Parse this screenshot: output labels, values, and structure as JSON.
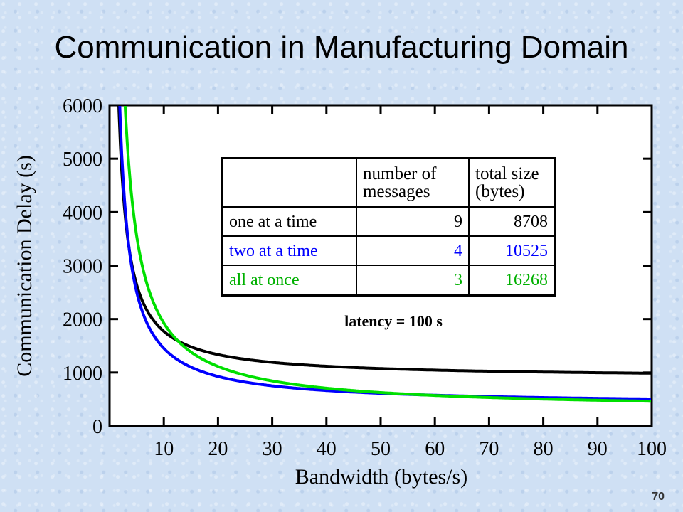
{
  "slide": {
    "title": "Communication in Manufacturing Domain",
    "page_number": "70"
  },
  "colors": {
    "one_at_a_time": "#000000",
    "two_at_a_time": "#0000ff",
    "all_at_once": "#00e000"
  },
  "chart_data": {
    "type": "line",
    "xlabel": "Bandwidth (bytes/s)",
    "ylabel": "Communication Delay (s)",
    "xlim": [
      0,
      100
    ],
    "ylim": [
      0,
      6000
    ],
    "x_ticks": [
      "10",
      "20",
      "30",
      "40",
      "50",
      "60",
      "70",
      "80",
      "90",
      "100"
    ],
    "y_ticks": [
      "0",
      "1000",
      "2000",
      "3000",
      "4000",
      "5000",
      "6000"
    ],
    "annotation": "latency = 100 s",
    "latency": 100,
    "series": [
      {
        "name": "one at a time",
        "messages": 9,
        "total_bytes": 8708
      },
      {
        "name": "two at a time",
        "messages": 4,
        "total_bytes": 10525
      },
      {
        "name": "all at once",
        "messages": 3,
        "total_bytes": 16268
      }
    ],
    "table": {
      "headers": [
        "",
        "number of messages",
        "total size (bytes)"
      ],
      "header_lines": [
        [
          "",
          ""
        ],
        [
          "number of",
          "messages"
        ],
        [
          "total size",
          "(bytes)"
        ]
      ],
      "rows": [
        [
          "one at a time",
          "9",
          "8708"
        ],
        [
          "two at a time",
          "4",
          "10525"
        ],
        [
          "all at once",
          "3",
          "16268"
        ]
      ]
    }
  }
}
